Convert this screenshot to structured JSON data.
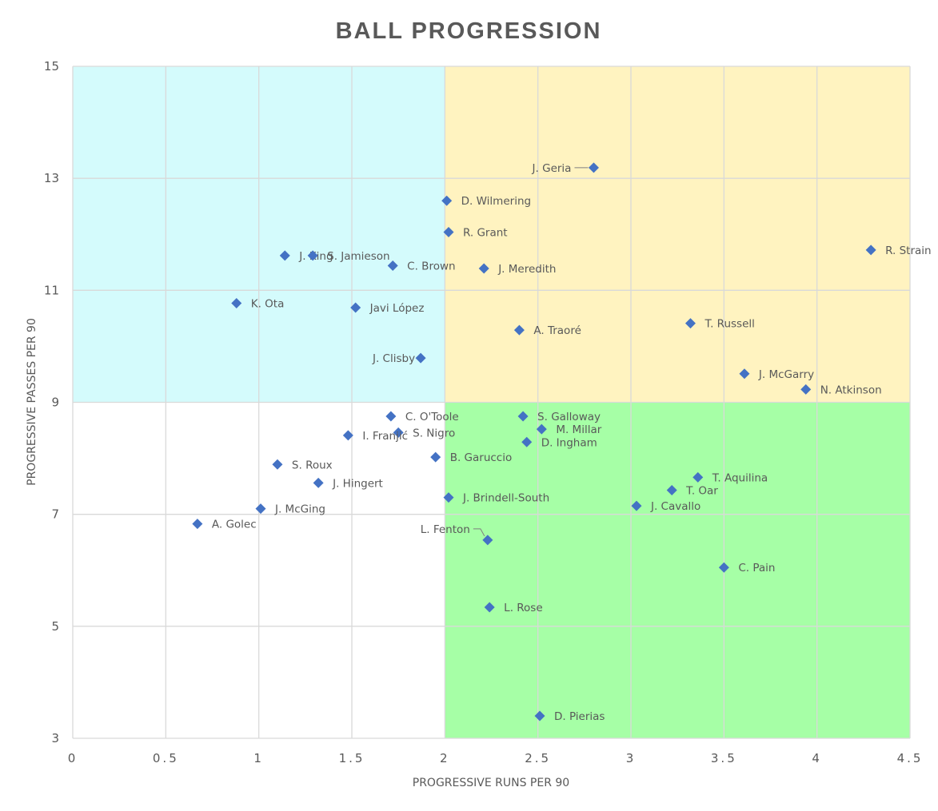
{
  "chart_data": {
    "type": "scatter",
    "title": "BALL PROGRESSION",
    "xlabel": "PROGRESSIVE RUNS PER 90",
    "ylabel": "PROGRESSIVE PASSES PER 90",
    "xlim": [
      0,
      4.5
    ],
    "ylim": [
      3,
      15
    ],
    "x_ticks": [
      "0",
      "0.5",
      "1",
      "1.5",
      "2",
      "2.5",
      "3",
      "3.5",
      "4",
      "4.5"
    ],
    "y_ticks": [
      "3",
      "5",
      "7",
      "9",
      "11",
      "13",
      "15"
    ],
    "grid": true,
    "quadrants": [
      {
        "x": [
          0,
          2
        ],
        "y": [
          9,
          15
        ],
        "color": "#d4fbfc"
      },
      {
        "x": [
          2,
          4.5
        ],
        "y": [
          9,
          15
        ],
        "color": "#fff3c0"
      },
      {
        "x": [
          2,
          4.5
        ],
        "y": [
          3,
          9
        ],
        "color": "#a6ffa6"
      },
      {
        "x": [
          0,
          2
        ],
        "y": [
          3,
          9
        ],
        "color": "#ffffff"
      }
    ],
    "marker_color": "#4472c4",
    "points": [
      {
        "label": "J. Geria",
        "x": 2.8,
        "y": 13.19,
        "label_side": "left",
        "leader": true
      },
      {
        "label": "D. Wilmering",
        "x": 2.01,
        "y": 12.6
      },
      {
        "label": "R. Grant",
        "x": 2.02,
        "y": 12.04
      },
      {
        "label": "R. Strain",
        "x": 4.29,
        "y": 11.72
      },
      {
        "label": "J. King",
        "x": 1.14,
        "y": 11.62
      },
      {
        "label": "S. Jamieson",
        "x": 1.29,
        "y": 11.62
      },
      {
        "label": "C. Brown",
        "x": 1.72,
        "y": 11.44
      },
      {
        "label": "J. Meredith",
        "x": 2.21,
        "y": 11.39
      },
      {
        "label": "K. Ota",
        "x": 0.88,
        "y": 10.77
      },
      {
        "label": "Javi López",
        "x": 1.52,
        "y": 10.69
      },
      {
        "label": "T. Russell",
        "x": 3.32,
        "y": 10.41
      },
      {
        "label": "A. Traoré",
        "x": 2.4,
        "y": 10.29
      },
      {
        "label": "J. Clisby",
        "x": 1.87,
        "y": 9.79,
        "label_side": "left"
      },
      {
        "label": "J. McGarry",
        "x": 3.61,
        "y": 9.51
      },
      {
        "label": "N. Atkinson",
        "x": 3.94,
        "y": 9.23
      },
      {
        "label": "C. O'Toole",
        "x": 1.71,
        "y": 8.75
      },
      {
        "label": "S. Galloway",
        "x": 2.42,
        "y": 8.75
      },
      {
        "label": "M. Millar",
        "x": 2.52,
        "y": 8.52
      },
      {
        "label": "S. Nigro",
        "x": 1.75,
        "y": 8.46
      },
      {
        "label": "I. Franjić",
        "x": 1.48,
        "y": 8.41
      },
      {
        "label": "D. Ingham",
        "x": 2.44,
        "y": 8.29
      },
      {
        "label": "B. Garuccio",
        "x": 1.95,
        "y": 8.02
      },
      {
        "label": "S. Roux",
        "x": 1.1,
        "y": 7.89
      },
      {
        "label": "T. Aquilina",
        "x": 3.36,
        "y": 7.66
      },
      {
        "label": "J. Hingert",
        "x": 1.32,
        "y": 7.56
      },
      {
        "label": "T. Oar",
        "x": 3.22,
        "y": 7.43
      },
      {
        "label": "J. Brindell-South",
        "x": 2.02,
        "y": 7.3
      },
      {
        "label": "J. Cavallo",
        "x": 3.03,
        "y": 7.15
      },
      {
        "label": "J. McGing",
        "x": 1.01,
        "y": 7.1
      },
      {
        "label": "A. Golec",
        "x": 0.67,
        "y": 6.83
      },
      {
        "label": "L. Fenton",
        "x": 2.23,
        "y": 6.54,
        "label_side": "leftup",
        "leader": true
      },
      {
        "label": "C. Pain",
        "x": 3.5,
        "y": 6.05
      },
      {
        "label": "L. Rose",
        "x": 2.24,
        "y": 5.34
      },
      {
        "label": "D. Pierias",
        "x": 2.51,
        "y": 3.4
      }
    ]
  }
}
